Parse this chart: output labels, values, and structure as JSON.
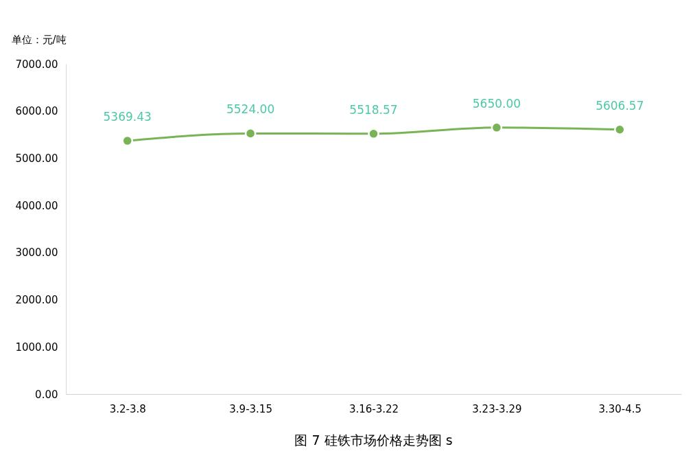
{
  "chart_data": {
    "type": "line",
    "title": "图 7  硅铁市场价格走势图 s",
    "ylabel": "单位：元/吨",
    "categories": [
      "3.2-3.8",
      "3.9-3.15",
      "3.16-3.22",
      "3.23-3.29",
      "3.30-4.5"
    ],
    "series": [
      {
        "color": "#78b455",
        "values": [
          5369.43,
          5524.0,
          5518.57,
          5650.0,
          5606.57
        ],
        "value_labels": [
          "5369.43",
          "5524.00",
          "5518.57",
          "5650.00",
          "5606.57"
        ]
      }
    ],
    "ylim": [
      0,
      7000
    ],
    "yticks": [
      {
        "value": 0,
        "label": "0.00"
      },
      {
        "value": 1000,
        "label": "1000.00"
      },
      {
        "value": 2000,
        "label": "2000.00"
      },
      {
        "value": 3000,
        "label": "3000.00"
      },
      {
        "value": 4000,
        "label": "4000.00"
      },
      {
        "value": 5000,
        "label": "5000.00"
      },
      {
        "value": 6000,
        "label": "6000.00"
      },
      {
        "value": 7000,
        "label": "7000.00"
      }
    ],
    "grid": false,
    "legend": false,
    "marker": "circle",
    "line_style": "solid"
  }
}
